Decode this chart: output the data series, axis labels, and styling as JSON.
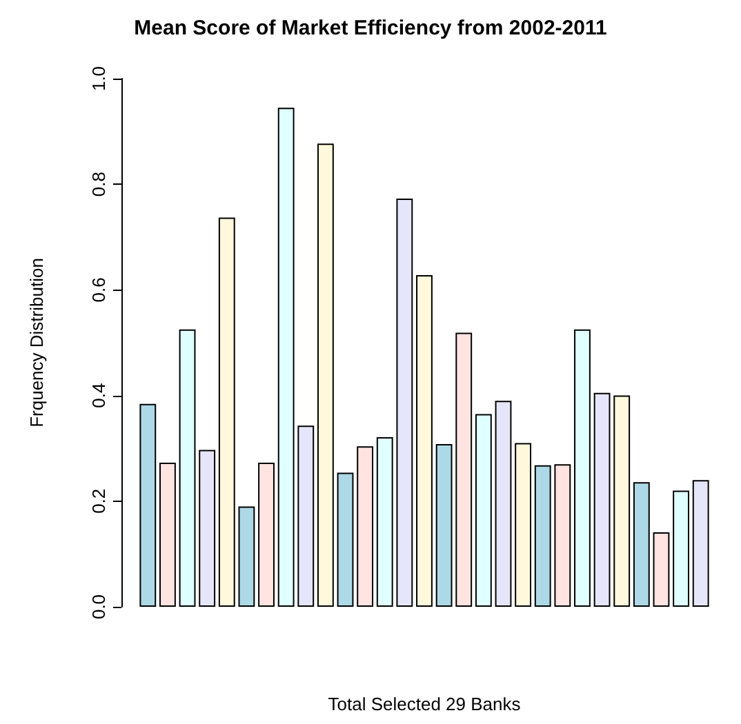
{
  "chart_data": {
    "type": "bar",
    "title": "Mean Score of Market Efficiency from 2002-2011",
    "xlabel": "Total Selected 29 Banks",
    "ylabel": "Frquency Distribution",
    "categories": [
      null,
      null,
      null,
      null,
      null,
      null,
      null,
      null,
      null,
      null,
      null,
      null,
      null,
      null,
      null,
      null,
      null,
      null,
      null,
      null,
      null,
      null,
      null,
      null,
      null,
      null,
      null,
      null,
      null
    ],
    "values": [
      0.384,
      0.273,
      0.525,
      0.297,
      0.737,
      0.19,
      0.273,
      0.945,
      0.343,
      0.877,
      0.254,
      0.304,
      0.321,
      0.773,
      0.628,
      0.308,
      0.519,
      0.365,
      0.39,
      0.31,
      0.268,
      0.27,
      0.525,
      0.405,
      0.4,
      0.236,
      0.141,
      0.22,
      0.24
    ],
    "colors": [
      "#add8e6",
      "#ffe4e1",
      "#e0ffff",
      "#e6e6fa",
      "#fff8dc",
      "#add8e6",
      "#ffe4e1",
      "#e0ffff",
      "#e6e6fa",
      "#fff8dc",
      "#add8e6",
      "#ffe4e1",
      "#e0ffff",
      "#e6e6fa",
      "#fff8dc",
      "#add8e6",
      "#ffe4e1",
      "#e0ffff",
      "#e6e6fa",
      "#fff8dc",
      "#add8e6",
      "#ffe4e1",
      "#e0ffff",
      "#e6e6fa",
      "#fff8dc",
      "#add8e6",
      "#ffe4e1",
      "#e0ffff",
      "#e6e6fa"
    ],
    "ylim": [
      0,
      1
    ],
    "yticks": [
      {
        "value": 0,
        "label": "0.0"
      },
      0.2,
      0.4,
      0.6,
      0.8,
      {
        "value": 1,
        "label": "1.0"
      }
    ],
    "grid": false
  }
}
